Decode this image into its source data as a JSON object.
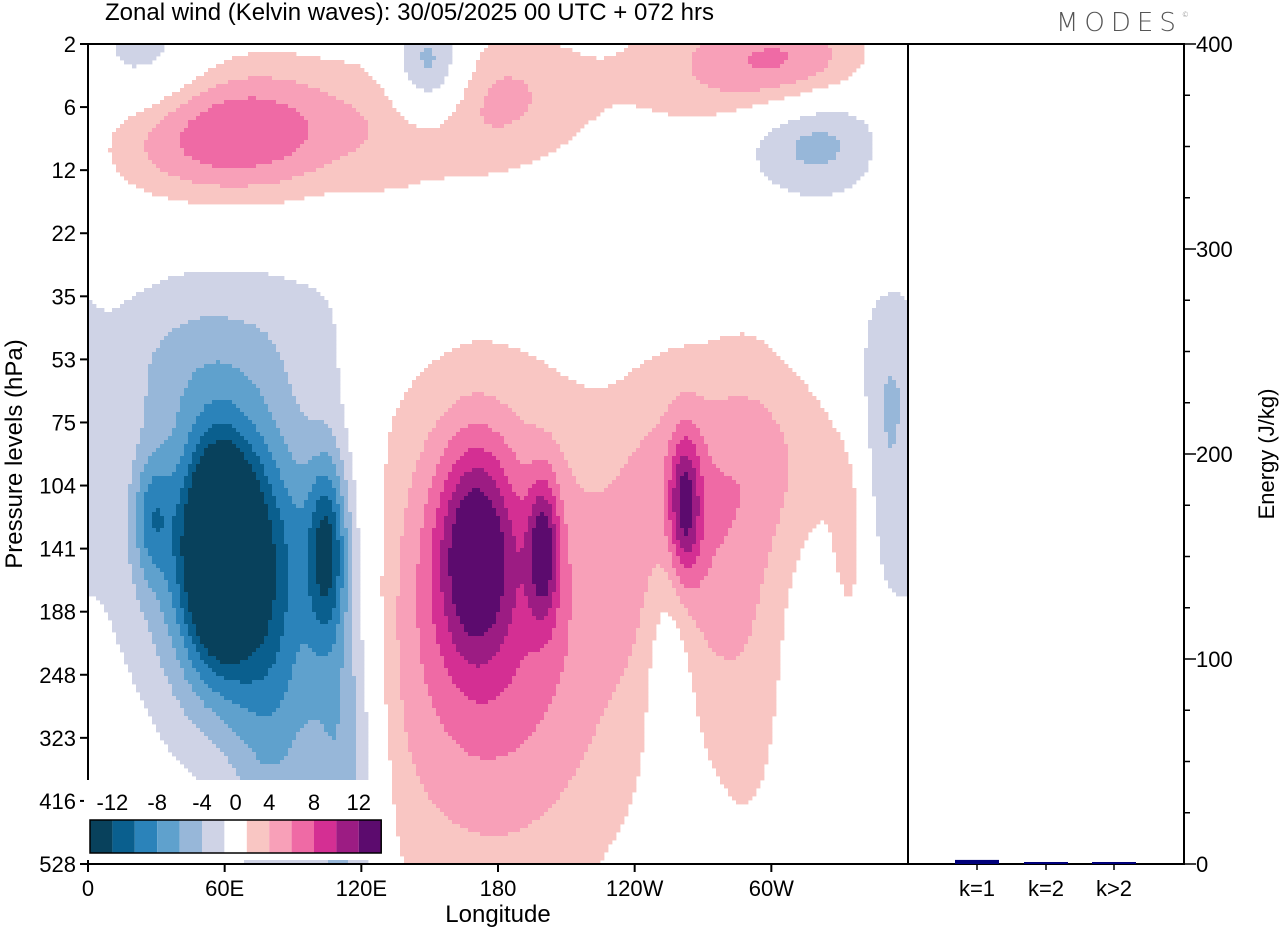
{
  "title": "Zonal wind (Kelvin waves):  30/05/2025  00 UTC  + 072 hrs",
  "brand": "MODES",
  "brand_mark": "©",
  "colors": {
    "frame": "#000000",
    "bar_fill": "#00007a",
    "levels": [
      {
        "min": -99,
        "max": -12,
        "color": "#08415c"
      },
      {
        "min": -12,
        "max": -10,
        "color": "#0a5f8e"
      },
      {
        "min": -10,
        "max": -8,
        "color": "#2b83ba"
      },
      {
        "min": -8,
        "max": -6,
        "color": "#5fa1cd"
      },
      {
        "min": -6,
        "max": -4,
        "color": "#97b7d9"
      },
      {
        "min": -4,
        "max": -2,
        "color": "#cfd3e6"
      },
      {
        "min": -2,
        "max": 2,
        "color": "#ffffff"
      },
      {
        "min": 2,
        "max": 4,
        "color": "#f9c6c3"
      },
      {
        "min": 4,
        "max": 6,
        "color": "#f8a0b8"
      },
      {
        "min": 6,
        "max": 8,
        "color": "#ef6aa5"
      },
      {
        "min": 8,
        "max": 10,
        "color": "#d42f93"
      },
      {
        "min": 10,
        "max": 12,
        "color": "#9c1c83"
      },
      {
        "min": 12,
        "max": 99,
        "color": "#5c0b6e"
      }
    ]
  },
  "chart_data": [
    {
      "type": "heatmap",
      "title": "Zonal wind (Kelvin waves):  30/05/2025  00 UTC  + 072 hrs",
      "xlabel": "Longitude",
      "ylabel": "Pressure levels (hPa)",
      "x_ticks": [
        "0",
        "60E",
        "120E",
        "180",
        "120W",
        "60W"
      ],
      "x_tick_deg": [
        0,
        60,
        120,
        180,
        240,
        300
      ],
      "xlim": [
        0,
        360
      ],
      "y_ticks": [
        "2",
        "6",
        "12",
        "22",
        "35",
        "53",
        "75",
        "104",
        "141",
        "188",
        "248",
        "323",
        "416",
        "528"
      ],
      "colorbar": {
        "labels": [
          "-12",
          "-8",
          "-4",
          "0",
          "4",
          "8",
          "12"
        ],
        "levels": [
          -12,
          -10,
          -8,
          -6,
          -4,
          -2,
          2,
          4,
          6,
          8,
          10,
          12
        ]
      },
      "features": [
        {
          "lon": 58,
          "level": 141,
          "value": -14,
          "lon_width": 10,
          "level_width": 1.1
        },
        {
          "lon": 60,
          "level": 141,
          "value": -9,
          "lon_width": 20,
          "level_width": 2.0
        },
        {
          "lon": 28,
          "level": 120,
          "value": -5,
          "lon_width": 6,
          "level_width": 0.7
        },
        {
          "lon": 80,
          "level": 220,
          "value": -5,
          "lon_width": 12,
          "level_width": 3.0
        },
        {
          "lon": 105,
          "level": 141,
          "value": -8,
          "lon_width": 6,
          "level_width": 1.0
        },
        {
          "lon": 105,
          "level": 188,
          "value": -5,
          "lon_width": 14,
          "level_width": 3.5
        },
        {
          "lon": 115,
          "level": 380,
          "value": -4,
          "lon_width": 10,
          "level_width": 2.0
        },
        {
          "lon": 40,
          "level": 110,
          "value": -3,
          "lon_width": 40,
          "level_width": 2.5
        },
        {
          "lon": 170,
          "level": 141,
          "value": 9,
          "lon_width": 12,
          "level_width": 1.2
        },
        {
          "lon": 200,
          "level": 141,
          "value": 8,
          "lon_width": 5,
          "level_width": 0.8
        },
        {
          "lon": 180,
          "level": 175,
          "value": 5,
          "lon_width": 40,
          "level_width": 2.5
        },
        {
          "lon": 175,
          "level": 290,
          "value": 3,
          "lon_width": 50,
          "level_width": 3.0
        },
        {
          "lon": 262,
          "level": 115,
          "value": 8,
          "lon_width": 5,
          "level_width": 0.8
        },
        {
          "lon": 258,
          "level": 130,
          "value": 5,
          "lon_width": 18,
          "level_width": 1.8
        },
        {
          "lon": 290,
          "level": 180,
          "value": 3,
          "lon_width": 14,
          "level_width": 3.0
        },
        {
          "lon": 335,
          "level": 141,
          "value": 3,
          "lon_width": 6,
          "level_width": 1.2
        },
        {
          "lon": 310,
          "level": 90,
          "value": 3,
          "lon_width": 30,
          "level_width": 1.2
        },
        {
          "lon": 255,
          "level": 205,
          "value": -4,
          "lon_width": 8,
          "level_width": 1.5
        },
        {
          "lon": 350,
          "level": 80,
          "value": -4,
          "lon_width": 10,
          "level_width": 1.5
        },
        {
          "lon": 60,
          "level": 75,
          "value": 3,
          "lon_width": 40,
          "level_width": 1.0
        },
        {
          "lon": 55,
          "level": 8,
          "value": 6,
          "lon_width": 40,
          "level_width": 0.7
        },
        {
          "lon": 90,
          "level": 8,
          "value": 3,
          "lon_width": 50,
          "level_width": 1.0
        },
        {
          "lon": 150,
          "level": 3,
          "value": -7,
          "lon_width": 12,
          "level_width": 0.6
        },
        {
          "lon": 25,
          "level": 3,
          "value": -4,
          "lon_width": 20,
          "level_width": 0.8
        },
        {
          "lon": 310,
          "level": 3,
          "value": 6,
          "lon_width": 25,
          "level_width": 0.6
        },
        {
          "lon": 180,
          "level": 5,
          "value": 4,
          "lon_width": 30,
          "level_width": 0.8
        },
        {
          "lon": 320,
          "level": 8,
          "value": -6,
          "lon_width": 25,
          "level_width": 0.7
        },
        {
          "lon": 270,
          "level": 3,
          "value": 3,
          "lon_width": 30,
          "level_width": 0.8
        },
        {
          "lon": 40,
          "level": 60,
          "value": -3,
          "lon_width": 30,
          "level_width": 1.0
        }
      ]
    },
    {
      "type": "bar",
      "ylabel": "Energy (J/kg)",
      "ylim": [
        0,
        400
      ],
      "y_ticks": [
        0,
        100,
        200,
        300,
        400
      ],
      "categories": [
        "k=1",
        "k=2",
        "k>2"
      ],
      "values": [
        2,
        0.5,
        0.3
      ]
    }
  ]
}
